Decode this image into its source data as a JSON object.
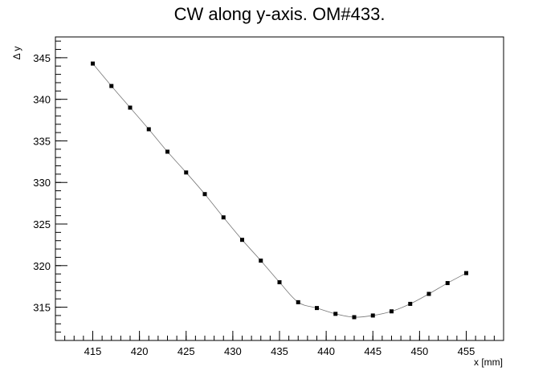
{
  "chart_data": {
    "type": "line",
    "title": "CW along y-axis. OM#433.",
    "xlabel": "x [mm]",
    "ylabel": "Δ y",
    "xlim": [
      411,
      459
    ],
    "ylim": [
      311,
      347.5
    ],
    "x_ticks": [
      415,
      420,
      425,
      430,
      435,
      440,
      445,
      450,
      455
    ],
    "y_ticks": [
      315,
      320,
      325,
      330,
      335,
      340,
      345
    ],
    "grid": false,
    "legend": "none",
    "series": [
      {
        "x": [
          415,
          417,
          419,
          421,
          423,
          425,
          427,
          429,
          431,
          433,
          435,
          437,
          439,
          441,
          443,
          445,
          447,
          449,
          451,
          453,
          455
        ],
        "values": [
          344.3,
          341.6,
          339.0,
          336.4,
          333.7,
          331.2,
          328.6,
          325.8,
          323.1,
          320.6,
          318.0,
          315.6,
          314.9,
          314.2,
          313.8,
          314.0,
          314.5,
          315.4,
          316.6,
          317.9,
          319.1
        ]
      }
    ],
    "colors": {
      "line": "#777777",
      "marker": "#000000",
      "axis": "#000000"
    }
  }
}
